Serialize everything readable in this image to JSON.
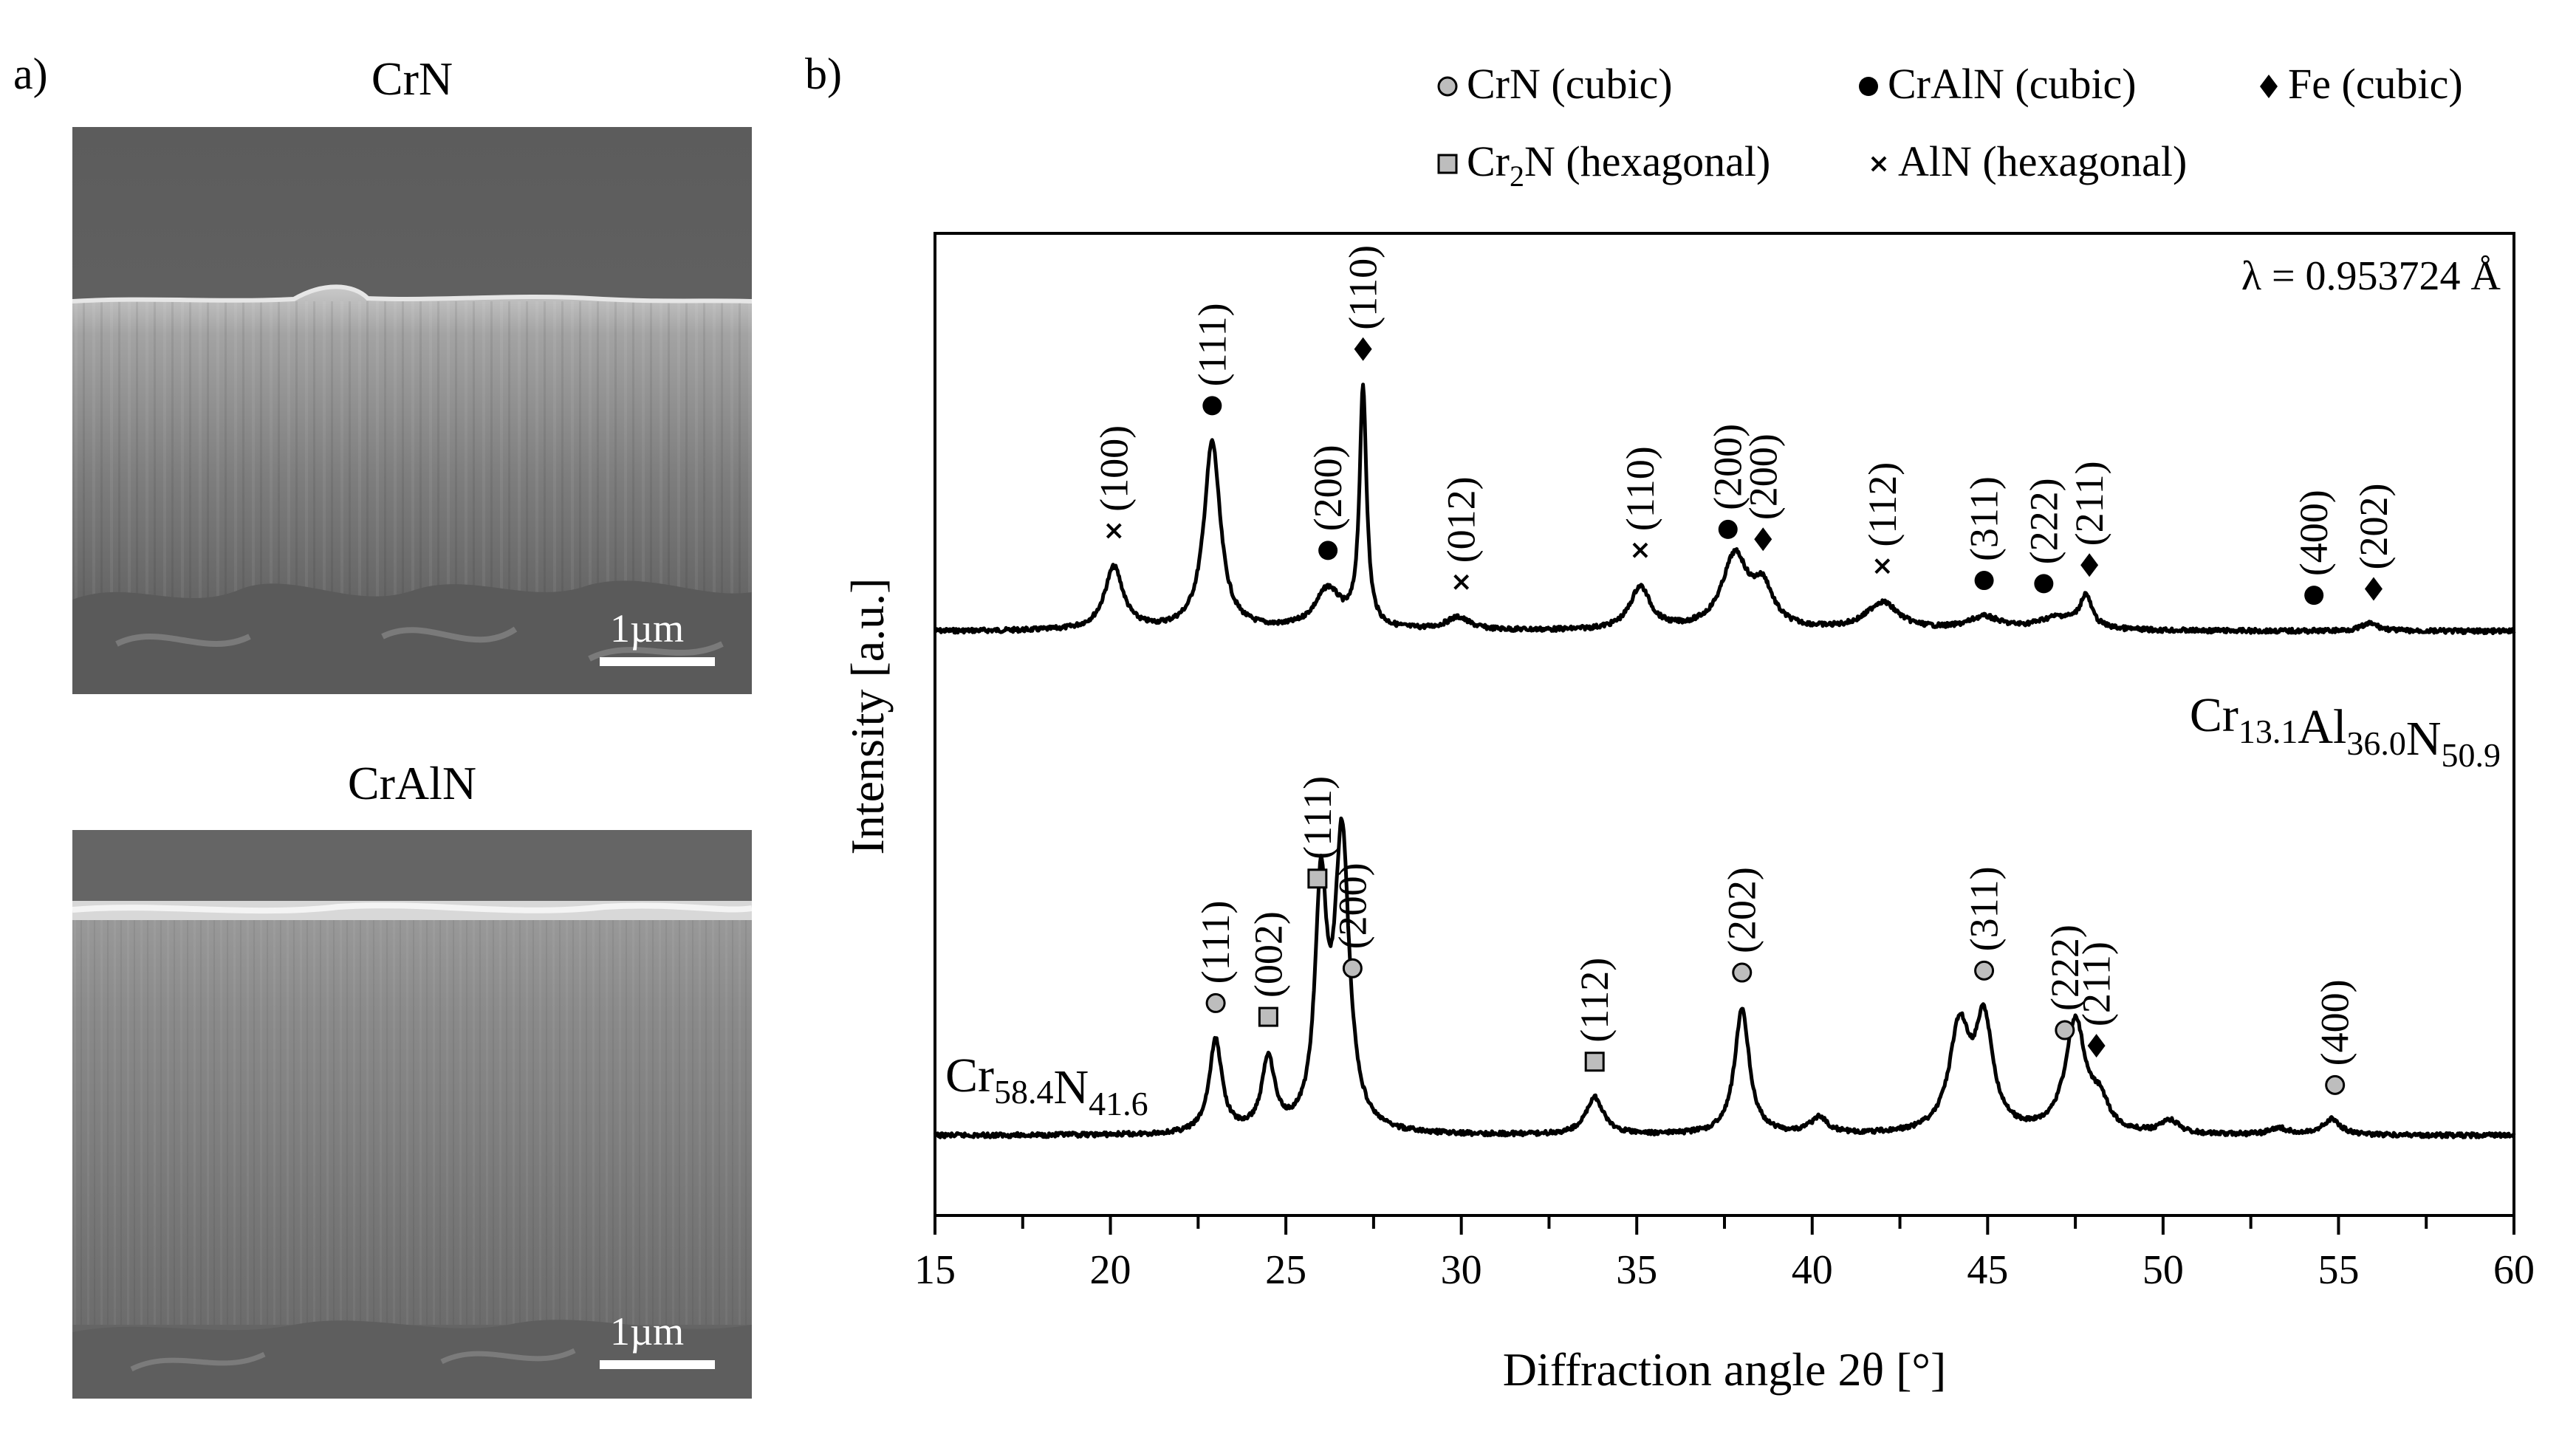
{
  "panels": {
    "a_label": "a)",
    "b_label": "b)",
    "sem_top_title": "CrN",
    "sem_bottom_title": "CrAlN",
    "scale_top": "1µm",
    "scale_bottom": "1µm"
  },
  "chart_data": {
    "type": "line",
    "xlabel": "Diffraction angle 2θ [°]",
    "ylabel": "Intensity [a.u.]",
    "xlim": [
      15,
      60
    ],
    "xticks": [
      15,
      20,
      25,
      30,
      35,
      40,
      45,
      50,
      55,
      60
    ],
    "wavelength_label": "λ = 0.953724 Å",
    "legend": [
      {
        "symbol": "circle-gray",
        "label": "CrN (cubic)"
      },
      {
        "symbol": "circle-black",
        "label": "CrAlN (cubic)"
      },
      {
        "symbol": "diamond",
        "label": "Fe (cubic)"
      },
      {
        "symbol": "square-gray",
        "label": "Cr2N (hexagonal)"
      },
      {
        "symbol": "cross",
        "label": "AlN (hexagonal)"
      }
    ],
    "series": [
      {
        "name_parts": [
          [
            "Cr",
            "13.1"
          ],
          [
            "Al",
            "36.0"
          ],
          [
            "N",
            "50.9"
          ]
        ],
        "background": 0.3,
        "peaks": [
          {
            "x": 20.1,
            "h": 0.5,
            "w": 0.32
          },
          {
            "x": 22.9,
            "h": 1.5,
            "w": 0.28
          },
          {
            "x": 26.2,
            "h": 0.32,
            "w": 0.45
          },
          {
            "x": 27.2,
            "h": 1.9,
            "w": 0.12
          },
          {
            "x": 29.9,
            "h": 0.1,
            "w": 0.4
          },
          {
            "x": 35.1,
            "h": 0.34,
            "w": 0.35
          },
          {
            "x": 37.8,
            "h": 0.58,
            "w": 0.45
          },
          {
            "x": 38.6,
            "h": 0.3,
            "w": 0.35
          },
          {
            "x": 42.0,
            "h": 0.22,
            "w": 0.55
          },
          {
            "x": 44.9,
            "h": 0.1,
            "w": 0.55
          },
          {
            "x": 47.0,
            "h": 0.1,
            "w": 0.7
          },
          {
            "x": 47.8,
            "h": 0.25,
            "w": 0.2
          },
          {
            "x": 55.9,
            "h": 0.06,
            "w": 0.3
          }
        ],
        "annotations": [
          {
            "x": 20.1,
            "marker": "cross",
            "hkl": "(100)"
          },
          {
            "x": 22.9,
            "marker": "circle-black",
            "hkl": "(111)"
          },
          {
            "x": 26.2,
            "marker": "circle-black",
            "hkl": "(200)"
          },
          {
            "x": 27.2,
            "marker": "diamond",
            "hkl": "(110)"
          },
          {
            "x": 30.0,
            "marker": "cross",
            "hkl": "(012)"
          },
          {
            "x": 35.1,
            "marker": "cross",
            "hkl": "(110)"
          },
          {
            "x": 37.6,
            "marker": "circle-black",
            "hkl": "(200)"
          },
          {
            "x": 38.6,
            "marker": "diamond",
            "hkl": "(200)"
          },
          {
            "x": 42.0,
            "marker": "cross",
            "hkl": "(112)"
          },
          {
            "x": 44.9,
            "marker": "circle-black",
            "hkl": "(311)"
          },
          {
            "x": 46.6,
            "marker": "circle-black",
            "hkl": "(222)"
          },
          {
            "x": 47.9,
            "marker": "diamond",
            "hkl": "(211)"
          },
          {
            "x": 54.3,
            "marker": "circle-black",
            "hkl": "(400)"
          },
          {
            "x": 56.0,
            "marker": "diamond",
            "hkl": "(202)"
          }
        ]
      },
      {
        "name_parts": [
          [
            "Cr",
            "58.4"
          ],
          [
            "N",
            "41.6"
          ]
        ],
        "background": 0.3,
        "peaks": [
          {
            "x": 23.0,
            "h": 0.7,
            "w": 0.22
          },
          {
            "x": 24.5,
            "h": 0.55,
            "w": 0.22
          },
          {
            "x": 26.0,
            "h": 1.75,
            "w": 0.2
          },
          {
            "x": 26.6,
            "h": 2.2,
            "w": 0.25
          },
          {
            "x": 33.8,
            "h": 0.28,
            "w": 0.3
          },
          {
            "x": 38.0,
            "h": 0.95,
            "w": 0.25
          },
          {
            "x": 40.2,
            "h": 0.12,
            "w": 0.3
          },
          {
            "x": 44.2,
            "h": 0.78,
            "w": 0.35
          },
          {
            "x": 44.9,
            "h": 0.8,
            "w": 0.3
          },
          {
            "x": 47.5,
            "h": 0.84,
            "w": 0.35
          },
          {
            "x": 48.2,
            "h": 0.2,
            "w": 0.3
          },
          {
            "x": 50.2,
            "h": 0.1,
            "w": 0.3
          },
          {
            "x": 53.3,
            "h": 0.05,
            "w": 0.3
          },
          {
            "x": 54.8,
            "h": 0.12,
            "w": 0.3
          }
        ],
        "annotations": [
          {
            "x": 23.0,
            "marker": "circle-gray",
            "hkl": "(111)"
          },
          {
            "x": 24.5,
            "marker": "square-gray",
            "hkl": "(002)"
          },
          {
            "x": 25.9,
            "marker": "square-gray",
            "hkl": "(111)"
          },
          {
            "x": 26.9,
            "marker": "circle-gray",
            "hkl": "(200)"
          },
          {
            "x": 33.8,
            "marker": "square-gray",
            "hkl": "(112)"
          },
          {
            "x": 38.0,
            "marker": "circle-gray",
            "hkl": "(202)"
          },
          {
            "x": 44.9,
            "marker": "circle-gray",
            "hkl": "(311)"
          },
          {
            "x": 47.2,
            "marker": "circle-gray",
            "hkl": "(222)"
          },
          {
            "x": 48.1,
            "marker": "diamond",
            "hkl": "(211)"
          },
          {
            "x": 54.9,
            "marker": "circle-gray",
            "hkl": "(400)"
          }
        ]
      }
    ]
  }
}
